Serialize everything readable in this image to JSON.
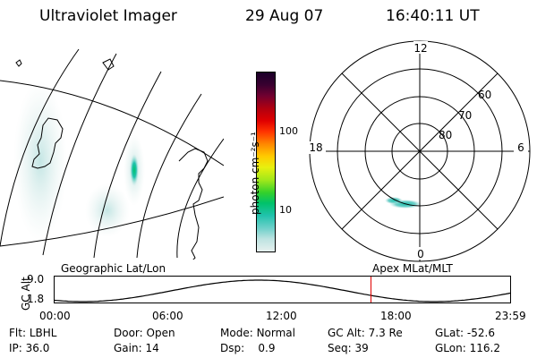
{
  "header": {
    "instrument": "Ultraviolet Imager",
    "date": "29 Aug 07",
    "time": "16:40:11 UT"
  },
  "colorbar": {
    "unit_label": "photon cm⁻²s⁻¹",
    "ticks": [
      "100",
      "10"
    ],
    "tick_values": [
      100,
      10
    ],
    "colors": [
      "#e6f0ee",
      "#bde3e1",
      "#6fd0ca",
      "#21c2ad",
      "#00c26a",
      "#35d12a",
      "#a2e81a",
      "#e8f00f",
      "#ffcc00",
      "#ff8800",
      "#ff3300",
      "#e00000",
      "#b00010",
      "#700030",
      "#3a0030",
      "#1a0028"
    ]
  },
  "polar": {
    "mlt_labels": {
      "top": "12",
      "left": "18",
      "right": "6",
      "bottom": "0"
    },
    "lat_labels": [
      "60",
      "70",
      "80"
    ]
  },
  "labels": {
    "geographic": "Geographic Lat/Lon",
    "apex": "Apex MLat/MLT"
  },
  "timeline": {
    "ylabel": "GC Alt",
    "ymax": "9.0",
    "ymin": "1.8",
    "ymax_value": 9.0,
    "ymin_value": 1.8,
    "xticks": [
      "00:00",
      "06:00",
      "12:00",
      "18:00",
      "23:59"
    ],
    "current_time_hours": 16.67
  },
  "status": {
    "flt_label": "Flt:",
    "flt_value": "LBHL",
    "door_label": "Door:",
    "door_value": "Open",
    "mode_label": "Mode:",
    "mode_value": "Normal",
    "gcalt_label": "GC Alt:",
    "gcalt_value": "7.3 Re",
    "glat_label": "GLat:",
    "glat_value": "-52.6",
    "ip_label": "IP:",
    "ip_value": "36.0",
    "gain_label": "Gain:",
    "gain_value": "14",
    "dsp_label": "Dsp:",
    "dsp_value": "0.9",
    "seq_label": "Seq:",
    "seq_value": "39",
    "glon_label": "GLon:",
    "glon_value": "116.2"
  }
}
